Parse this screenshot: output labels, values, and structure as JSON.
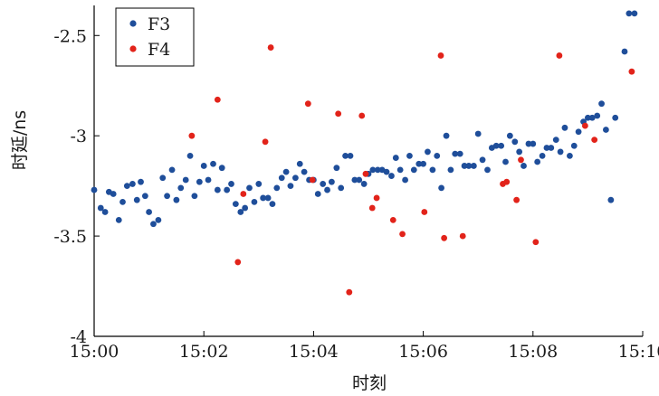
{
  "chart_data": {
    "type": "scatter",
    "xlabel": "时刻",
    "ylabel": "时延/ns",
    "xlim": [
      0,
      10
    ],
    "ylim": [
      -4,
      -2.35
    ],
    "x_ticks": [
      0,
      2,
      4,
      6,
      8,
      10
    ],
    "x_tick_labels": [
      "15:00",
      "15:02",
      "15:04",
      "15:06",
      "15:08",
      "15:10"
    ],
    "y_ticks": [
      -2.5,
      -3,
      -3.5,
      -4
    ],
    "y_tick_labels": [
      "-2.5",
      "-3",
      "-3.5",
      "-4"
    ],
    "grid": false,
    "legend_position": "top-left",
    "series": [
      {
        "name": "F3",
        "color": "#1f4e9a",
        "points": [
          [
            0.0,
            -3.27
          ],
          [
            0.12,
            -3.36
          ],
          [
            0.2,
            -3.38
          ],
          [
            0.27,
            -3.28
          ],
          [
            0.35,
            -3.29
          ],
          [
            0.45,
            -3.42
          ],
          [
            0.52,
            -3.33
          ],
          [
            0.6,
            -3.25
          ],
          [
            0.7,
            -3.24
          ],
          [
            0.78,
            -3.32
          ],
          [
            0.85,
            -3.23
          ],
          [
            0.93,
            -3.3
          ],
          [
            1.0,
            -3.38
          ],
          [
            1.08,
            -3.44
          ],
          [
            1.17,
            -3.42
          ],
          [
            1.25,
            -3.21
          ],
          [
            1.33,
            -3.3
          ],
          [
            1.42,
            -3.17
          ],
          [
            1.5,
            -3.32
          ],
          [
            1.58,
            -3.26
          ],
          [
            1.67,
            -3.22
          ],
          [
            1.75,
            -3.1
          ],
          [
            1.83,
            -3.3
          ],
          [
            1.92,
            -3.23
          ],
          [
            2.0,
            -3.15
          ],
          [
            2.08,
            -3.22
          ],
          [
            2.17,
            -3.14
          ],
          [
            2.25,
            -3.27
          ],
          [
            2.33,
            -3.16
          ],
          [
            2.42,
            -3.27
          ],
          [
            2.5,
            -3.24
          ],
          [
            2.58,
            -3.34
          ],
          [
            2.67,
            -3.38
          ],
          [
            2.75,
            -3.36
          ],
          [
            2.83,
            -3.26
          ],
          [
            2.92,
            -3.33
          ],
          [
            3.0,
            -3.24
          ],
          [
            3.08,
            -3.31
          ],
          [
            3.17,
            -3.31
          ],
          [
            3.25,
            -3.34
          ],
          [
            3.33,
            -3.26
          ],
          [
            3.42,
            -3.21
          ],
          [
            3.5,
            -3.18
          ],
          [
            3.58,
            -3.25
          ],
          [
            3.67,
            -3.21
          ],
          [
            3.75,
            -3.14
          ],
          [
            3.83,
            -3.18
          ],
          [
            3.92,
            -3.22
          ],
          [
            4.0,
            -3.22
          ],
          [
            4.08,
            -3.29
          ],
          [
            4.17,
            -3.24
          ],
          [
            4.25,
            -3.27
          ],
          [
            4.33,
            -3.23
          ],
          [
            4.42,
            -3.16
          ],
          [
            4.5,
            -3.26
          ],
          [
            4.58,
            -3.1
          ],
          [
            4.67,
            -3.1
          ],
          [
            4.75,
            -3.22
          ],
          [
            4.83,
            -3.22
          ],
          [
            4.92,
            -3.24
          ],
          [
            5.0,
            -3.19
          ],
          [
            5.08,
            -3.17
          ],
          [
            5.17,
            -3.17
          ],
          [
            5.25,
            -3.17
          ],
          [
            5.33,
            -3.18
          ],
          [
            5.42,
            -3.2
          ],
          [
            5.5,
            -3.11
          ],
          [
            5.58,
            -3.17
          ],
          [
            5.67,
            -3.22
          ],
          [
            5.75,
            -3.1
          ],
          [
            5.83,
            -3.17
          ],
          [
            5.92,
            -3.14
          ],
          [
            6.0,
            -3.14
          ],
          [
            6.08,
            -3.08
          ],
          [
            6.17,
            -3.17
          ],
          [
            6.25,
            -3.1
          ],
          [
            6.33,
            -3.26
          ],
          [
            6.42,
            -3.0
          ],
          [
            6.5,
            -3.17
          ],
          [
            6.58,
            -3.09
          ],
          [
            6.67,
            -3.09
          ],
          [
            6.75,
            -3.15
          ],
          [
            6.83,
            -3.15
          ],
          [
            6.92,
            -3.15
          ],
          [
            7.0,
            -2.99
          ],
          [
            7.08,
            -3.12
          ],
          [
            7.17,
            -3.17
          ],
          [
            7.25,
            -3.06
          ],
          [
            7.33,
            -3.05
          ],
          [
            7.42,
            -3.05
          ],
          [
            7.5,
            -3.13
          ],
          [
            7.58,
            -3.0
          ],
          [
            7.67,
            -3.03
          ],
          [
            7.75,
            -3.08
          ],
          [
            7.83,
            -3.15
          ],
          [
            7.92,
            -3.04
          ],
          [
            8.0,
            -3.04
          ],
          [
            8.08,
            -3.13
          ],
          [
            8.17,
            -3.1
          ],
          [
            8.25,
            -3.06
          ],
          [
            8.33,
            -3.06
          ],
          [
            8.42,
            -3.02
          ],
          [
            8.5,
            -3.08
          ],
          [
            8.58,
            -2.96
          ],
          [
            8.67,
            -3.1
          ],
          [
            8.75,
            -3.05
          ],
          [
            8.83,
            -2.98
          ],
          [
            8.92,
            -2.93
          ],
          [
            9.0,
            -2.91
          ],
          [
            9.08,
            -2.91
          ],
          [
            9.17,
            -2.9
          ],
          [
            9.25,
            -2.84
          ],
          [
            9.33,
            -2.97
          ],
          [
            9.42,
            -3.32
          ],
          [
            9.5,
            -2.91
          ],
          [
            9.67,
            -2.58
          ],
          [
            9.75,
            -2.39
          ],
          [
            9.85,
            -2.39
          ]
        ]
      },
      {
        "name": "F4",
        "color": "#e2231a",
        "points": [
          [
            1.78,
            -3.0
          ],
          [
            2.25,
            -2.82
          ],
          [
            2.62,
            -3.63
          ],
          [
            2.72,
            -3.29
          ],
          [
            3.12,
            -3.03
          ],
          [
            3.22,
            -2.56
          ],
          [
            3.9,
            -2.84
          ],
          [
            3.98,
            -3.22
          ],
          [
            4.45,
            -2.89
          ],
          [
            4.65,
            -3.78
          ],
          [
            4.88,
            -2.9
          ],
          [
            4.95,
            -3.19
          ],
          [
            5.07,
            -3.36
          ],
          [
            5.15,
            -3.31
          ],
          [
            5.45,
            -3.42
          ],
          [
            5.62,
            -3.49
          ],
          [
            6.02,
            -3.38
          ],
          [
            6.32,
            -2.6
          ],
          [
            6.38,
            -3.51
          ],
          [
            6.72,
            -3.5
          ],
          [
            7.45,
            -3.24
          ],
          [
            7.52,
            -3.23
          ],
          [
            7.7,
            -3.32
          ],
          [
            7.78,
            -3.12
          ],
          [
            8.05,
            -3.53
          ],
          [
            8.48,
            -2.6
          ],
          [
            8.95,
            -2.95
          ],
          [
            9.12,
            -3.02
          ],
          [
            9.8,
            -2.68
          ]
        ]
      }
    ]
  }
}
